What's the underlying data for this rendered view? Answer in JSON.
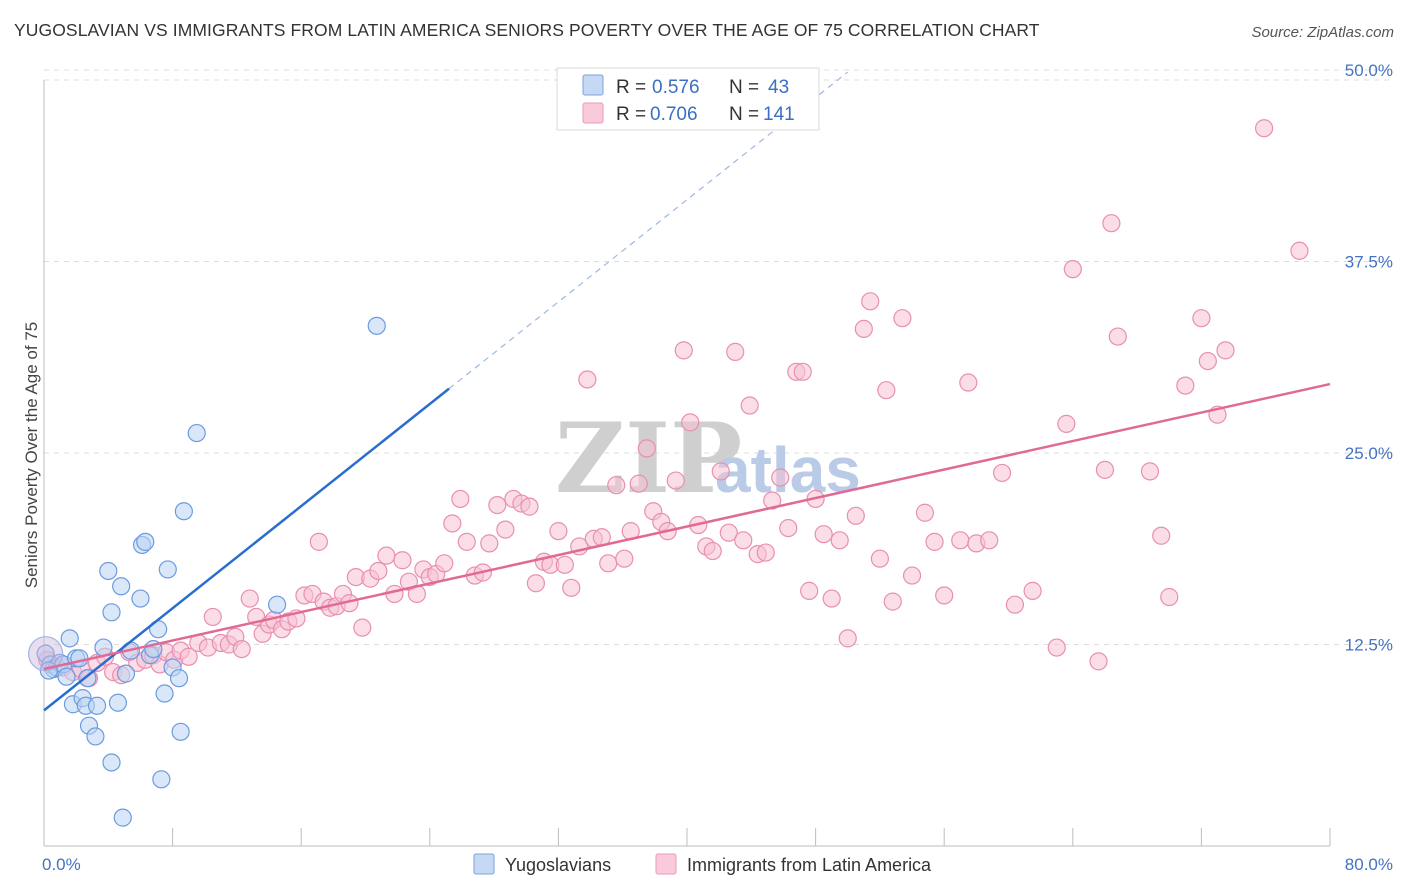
{
  "title": "YUGOSLAVIAN VS IMMIGRANTS FROM LATIN AMERICA SENIORS POVERTY OVER THE AGE OF 75 CORRELATION CHART",
  "source": "Source: ZipAtlas.com",
  "watermark": {
    "zip": "ZIP",
    "atlas": "atlas"
  },
  "legend": {
    "r_label": "R =",
    "n_label": "N =",
    "series": [
      {
        "r": "0.576",
        "n": "43"
      },
      {
        "r": "0.706",
        "n": "141"
      }
    ]
  },
  "chart_data": {
    "type": "scatter",
    "title": "YUGOSLAVIAN VS IMMIGRANTS FROM LATIN AMERICA SENIORS POVERTY OVER THE AGE OF 75 CORRELATION CHART",
    "xlabel": "",
    "ylabel": "Seniors Poverty Over the Age of 75",
    "xlim": [
      0,
      80
    ],
    "ylim": [
      0,
      50
    ],
    "x_tick_labels": [
      "0.0%",
      "80.0%"
    ],
    "y_ticks": [
      12.5,
      25.0,
      37.5,
      50.0
    ],
    "y_tick_labels": [
      "12.5%",
      "25.0%",
      "37.5%",
      "50.0%"
    ],
    "grid": true,
    "legend_position": "top-center",
    "colors": {
      "yugoslavians": "#6b9be0",
      "latin": "#ee94b4",
      "yugo_line": "#2a6dd0",
      "latin_line": "#e06a96"
    },
    "series": [
      {
        "name": "Yugoslavians",
        "r": 0.576,
        "n": 43,
        "trend": {
          "x": [
            0,
            25.2
          ],
          "y": [
            8.2,
            29.2
          ],
          "extend_to_x": 50
        },
        "points": [
          [
            0.1,
            11.9
          ],
          [
            0.4,
            11.2
          ],
          [
            0.6,
            10.9
          ],
          [
            0.8,
            11.0
          ],
          [
            1.0,
            11.3
          ],
          [
            1.2,
            11.2
          ],
          [
            1.4,
            10.4
          ],
          [
            1.6,
            12.9
          ],
          [
            1.8,
            8.6
          ],
          [
            2.0,
            11.6
          ],
          [
            2.2,
            11.6
          ],
          [
            2.4,
            9.0
          ],
          [
            2.6,
            8.5
          ],
          [
            2.7,
            10.3
          ],
          [
            2.8,
            7.2
          ],
          [
            3.2,
            6.5
          ],
          [
            3.3,
            8.5
          ],
          [
            3.7,
            12.3
          ],
          [
            4.0,
            17.3
          ],
          [
            4.2,
            14.6
          ],
          [
            4.2,
            4.8
          ],
          [
            4.6,
            8.7
          ],
          [
            4.8,
            16.3
          ],
          [
            4.9,
            1.2
          ],
          [
            5.1,
            10.6
          ],
          [
            5.4,
            12.1
          ],
          [
            6.0,
            15.5
          ],
          [
            6.1,
            19.0
          ],
          [
            6.3,
            19.2
          ],
          [
            6.6,
            11.8
          ],
          [
            6.8,
            12.2
          ],
          [
            7.1,
            13.5
          ],
          [
            7.3,
            3.7
          ],
          [
            7.5,
            9.3
          ],
          [
            7.7,
            17.4
          ],
          [
            8.0,
            11.0
          ],
          [
            8.4,
            10.3
          ],
          [
            8.5,
            6.8
          ],
          [
            8.7,
            21.2
          ],
          [
            9.5,
            26.3
          ],
          [
            14.5,
            15.1
          ],
          [
            20.7,
            33.3
          ],
          [
            0.3,
            10.8
          ]
        ]
      },
      {
        "name": "Immigrants from Latin America",
        "r": 0.706,
        "n": 141,
        "trend": {
          "x": [
            0,
            80
          ],
          "y": [
            10.9,
            29.5
          ]
        },
        "points": [
          [
            0.2,
            11.5
          ],
          [
            1.2,
            11.0
          ],
          [
            1.8,
            10.7
          ],
          [
            2.3,
            10.9
          ],
          [
            2.8,
            10.3
          ],
          [
            3.3,
            11.3
          ],
          [
            3.8,
            11.7
          ],
          [
            4.3,
            10.7
          ],
          [
            4.8,
            10.5
          ],
          [
            5.3,
            12.0
          ],
          [
            5.8,
            11.3
          ],
          [
            6.3,
            11.5
          ],
          [
            6.8,
            11.8
          ],
          [
            7.2,
            11.2
          ],
          [
            7.6,
            12.0
          ],
          [
            8.1,
            11.5
          ],
          [
            8.5,
            12.1
          ],
          [
            9.0,
            11.7
          ],
          [
            9.6,
            12.6
          ],
          [
            10.2,
            12.3
          ],
          [
            10.5,
            14.3
          ],
          [
            11.0,
            12.6
          ],
          [
            11.5,
            12.5
          ],
          [
            11.9,
            13.0
          ],
          [
            12.3,
            12.2
          ],
          [
            12.8,
            15.5
          ],
          [
            13.2,
            14.3
          ],
          [
            13.6,
            13.2
          ],
          [
            14.0,
            13.8
          ],
          [
            14.3,
            14.1
          ],
          [
            14.8,
            13.5
          ],
          [
            15.2,
            14.0
          ],
          [
            15.7,
            14.2
          ],
          [
            16.2,
            15.7
          ],
          [
            16.7,
            15.8
          ],
          [
            17.1,
            19.2
          ],
          [
            17.4,
            15.3
          ],
          [
            17.8,
            14.9
          ],
          [
            18.2,
            15.0
          ],
          [
            18.6,
            15.8
          ],
          [
            19.0,
            15.2
          ],
          [
            19.4,
            16.9
          ],
          [
            19.8,
            13.6
          ],
          [
            20.3,
            16.8
          ],
          [
            20.8,
            17.3
          ],
          [
            21.3,
            18.3
          ],
          [
            21.8,
            15.8
          ],
          [
            22.3,
            18.0
          ],
          [
            22.7,
            16.6
          ],
          [
            23.2,
            15.8
          ],
          [
            23.6,
            17.4
          ],
          [
            24.0,
            16.9
          ],
          [
            24.4,
            17.1
          ],
          [
            24.9,
            17.8
          ],
          [
            25.4,
            20.4
          ],
          [
            25.9,
            22.0
          ],
          [
            26.3,
            19.2
          ],
          [
            26.8,
            17.0
          ],
          [
            27.3,
            17.2
          ],
          [
            27.7,
            19.1
          ],
          [
            28.2,
            21.6
          ],
          [
            28.7,
            20.0
          ],
          [
            29.2,
            22.0
          ],
          [
            29.7,
            21.7
          ],
          [
            30.2,
            21.5
          ],
          [
            30.6,
            16.5
          ],
          [
            31.1,
            17.9
          ],
          [
            31.5,
            17.7
          ],
          [
            32.0,
            19.9
          ],
          [
            32.4,
            17.7
          ],
          [
            32.8,
            16.2
          ],
          [
            33.3,
            18.9
          ],
          [
            33.8,
            29.8
          ],
          [
            34.2,
            19.4
          ],
          [
            34.7,
            19.5
          ],
          [
            35.1,
            17.8
          ],
          [
            35.6,
            22.9
          ],
          [
            36.1,
            18.1
          ],
          [
            36.5,
            19.9
          ],
          [
            37.0,
            23.0
          ],
          [
            37.5,
            25.3
          ],
          [
            37.9,
            21.2
          ],
          [
            38.4,
            20.5
          ],
          [
            38.8,
            19.9
          ],
          [
            39.3,
            23.2
          ],
          [
            39.8,
            31.7
          ],
          [
            40.2,
            27.0
          ],
          [
            40.7,
            20.3
          ],
          [
            41.2,
            18.9
          ],
          [
            41.6,
            18.6
          ],
          [
            42.1,
            23.8
          ],
          [
            42.6,
            19.8
          ],
          [
            43.0,
            31.6
          ],
          [
            43.5,
            19.3
          ],
          [
            43.9,
            28.1
          ],
          [
            44.4,
            18.4
          ],
          [
            44.9,
            18.5
          ],
          [
            45.3,
            21.9
          ],
          [
            45.8,
            23.4
          ],
          [
            46.3,
            20.1
          ],
          [
            46.8,
            30.3
          ],
          [
            47.2,
            30.3
          ],
          [
            47.6,
            16.0
          ],
          [
            48.0,
            22.0
          ],
          [
            48.5,
            19.7
          ],
          [
            49.0,
            15.5
          ],
          [
            49.5,
            19.3
          ],
          [
            50.0,
            12.9
          ],
          [
            50.5,
            20.9
          ],
          [
            51.0,
            33.1
          ],
          [
            51.4,
            34.9
          ],
          [
            52.0,
            18.1
          ],
          [
            52.4,
            29.1
          ],
          [
            52.8,
            15.3
          ],
          [
            53.4,
            33.8
          ],
          [
            54.0,
            17.0
          ],
          [
            54.8,
            21.1
          ],
          [
            55.4,
            19.2
          ],
          [
            56.0,
            15.7
          ],
          [
            57.0,
            19.3
          ],
          [
            57.5,
            29.6
          ],
          [
            58.0,
            19.1
          ],
          [
            58.8,
            19.3
          ],
          [
            59.6,
            23.7
          ],
          [
            60.4,
            15.1
          ],
          [
            61.5,
            16.0
          ],
          [
            63.0,
            12.3
          ],
          [
            63.6,
            26.9
          ],
          [
            64.0,
            37.0
          ],
          [
            65.6,
            11.4
          ],
          [
            66.0,
            23.9
          ],
          [
            66.4,
            40.0
          ],
          [
            66.8,
            32.6
          ],
          [
            68.8,
            23.8
          ],
          [
            69.5,
            19.6
          ],
          [
            70.0,
            15.6
          ],
          [
            71.0,
            29.4
          ],
          [
            72.0,
            33.8
          ],
          [
            72.4,
            31.0
          ],
          [
            73.0,
            27.5
          ],
          [
            73.5,
            31.7
          ],
          [
            75.9,
            46.2
          ],
          [
            78.1,
            38.2
          ]
        ]
      }
    ]
  }
}
